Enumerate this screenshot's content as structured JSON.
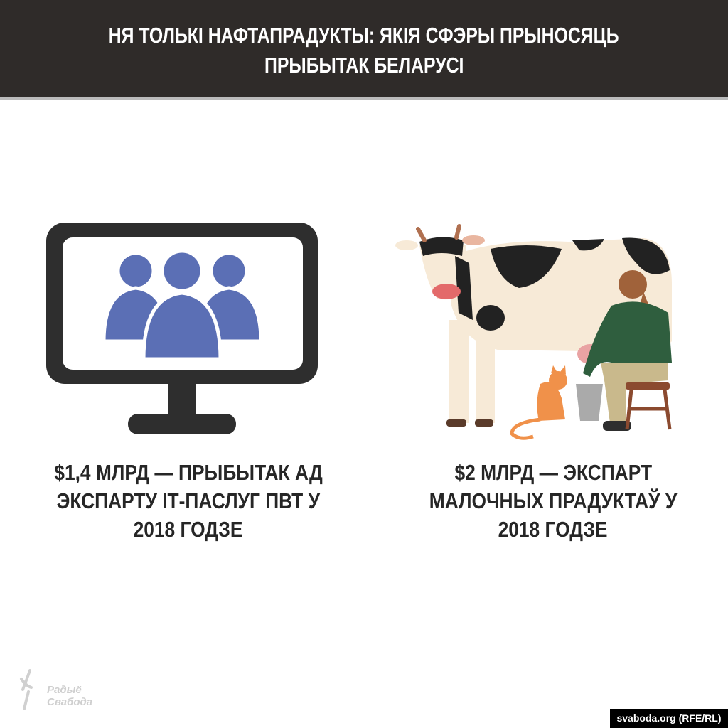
{
  "header": {
    "title_line1": "НЯ ТОЛЬКІ НАФТАПРАДУКТЫ: ЯКІЯ СФЭРЫ ПРЫНОСЯЦЬ",
    "title_line2": "ПРЫБЫТАК БЕЛАРУСІ"
  },
  "left": {
    "icon": "monitor-with-people-icon",
    "lines": [
      "$1,4 МЛРД —  ПРЫБЫТАК АД",
      "ЭКСПАРТУ ІТ-ПАСЛУГ ПВТ У",
      "2018 ГОДЗЕ"
    ]
  },
  "right": {
    "icon": "cow-milking-illustration",
    "lines": [
      "$2 МЛРД — ЭКСПАРТ",
      "МАЛОЧНЫХ ПРАДУКТАЎ У",
      "2018 ГОДЗЕ"
    ]
  },
  "footer": {
    "logo_line1": "Радыё",
    "logo_line2": "Свабода",
    "credit": "svaboda.org (RFE/RL)"
  },
  "colors": {
    "header_bg": "#2f2b29",
    "people_blue": "#5b6fb5",
    "monitor": "#2e2e2e"
  }
}
